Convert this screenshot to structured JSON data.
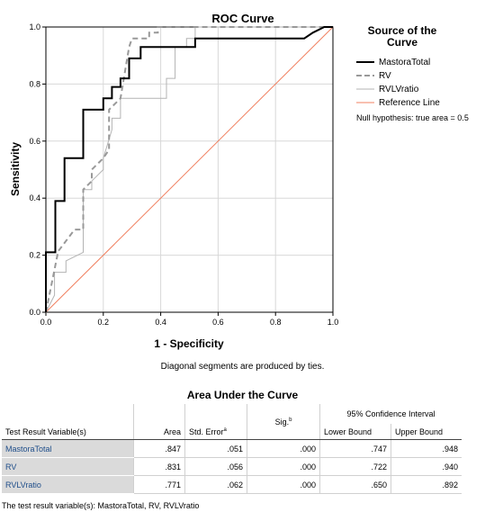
{
  "chart_data": {
    "type": "line",
    "title": "ROC Curve",
    "xlabel": "1 - Specificity",
    "ylabel": "Sensitivity",
    "xlim": [
      0,
      1
    ],
    "ylim": [
      0,
      1
    ],
    "xticks": [
      "0.0",
      "0.2",
      "0.4",
      "0.6",
      "0.8",
      "1.0"
    ],
    "yticks": [
      "0.0",
      "0.2",
      "0.4",
      "0.6",
      "0.8",
      "1.0"
    ],
    "grid": true,
    "legend_title": "Source of the Curve",
    "legend_note": "Null hypothesis: true area = 0.5",
    "legend_position": "right",
    "series": [
      {
        "name": "MastoraTotal",
        "color": "#000000",
        "style": "solid",
        "x": [
          0,
          0,
          0.033,
          0.033,
          0.065,
          0.065,
          0.13,
          0.13,
          0.2,
          0.2,
          0.23,
          0.23,
          0.26,
          0.26,
          0.29,
          0.29,
          0.33,
          0.33,
          0.36,
          0.36,
          0.4,
          0.4,
          0.45,
          0.45,
          0.52,
          0.52,
          0.9,
          0.93,
          0.97,
          1.0
        ],
        "y": [
          0,
          0.21,
          0.21,
          0.39,
          0.39,
          0.54,
          0.54,
          0.71,
          0.71,
          0.75,
          0.75,
          0.79,
          0.79,
          0.82,
          0.82,
          0.89,
          0.89,
          0.93,
          0.93,
          0.93,
          0.93,
          0.93,
          0.93,
          0.93,
          0.93,
          0.96,
          0.96,
          0.98,
          1.0,
          1.0
        ]
      },
      {
        "name": "RV",
        "color": "#999999",
        "style": "dashed",
        "x": [
          0,
          0.02,
          0.04,
          0.04,
          0.1,
          0.13,
          0.13,
          0.16,
          0.16,
          0.2,
          0.22,
          0.22,
          0.26,
          0.29,
          0.3,
          0.36,
          0.36,
          0.39,
          0.39,
          1.0
        ],
        "y": [
          0,
          0.1,
          0.2,
          0.21,
          0.29,
          0.29,
          0.43,
          0.46,
          0.5,
          0.54,
          0.57,
          0.71,
          0.75,
          0.93,
          0.96,
          0.96,
          0.98,
          0.98,
          1.0,
          1.0
        ]
      },
      {
        "name": "RVLVratio",
        "color": "#b3b3b3",
        "style": "solid",
        "x": [
          0,
          0.03,
          0.03,
          0.07,
          0.07,
          0.13,
          0.13,
          0.16,
          0.16,
          0.2,
          0.2,
          0.23,
          0.23,
          0.26,
          0.26,
          0.33,
          0.33,
          0.42,
          0.42,
          0.45,
          0.45,
          0.49,
          0.49,
          0.52,
          0.52,
          1.0
        ],
        "y": [
          0,
          0.06,
          0.14,
          0.14,
          0.18,
          0.21,
          0.43,
          0.43,
          0.46,
          0.5,
          0.54,
          0.64,
          0.68,
          0.68,
          0.75,
          0.75,
          0.75,
          0.75,
          0.82,
          0.82,
          0.93,
          0.93,
          0.96,
          0.96,
          1.0,
          1.0
        ]
      },
      {
        "name": "Reference Line",
        "color": "#f08060",
        "style": "solid",
        "x": [
          0,
          1
        ],
        "y": [
          0,
          1
        ]
      }
    ],
    "footnote": "Diagonal segments are produced by ties."
  },
  "auc_table": {
    "title": "Area Under the Curve",
    "headers": {
      "variable": "Test Result Variable(s)",
      "area": "Area",
      "std_error": "Std. Error",
      "std_error_mark": "a",
      "sig": "Sig.",
      "sig_mark": "b",
      "ci": "95% Confidence Interval",
      "lower": "Lower Bound",
      "upper": "Upper Bound"
    },
    "rows": [
      {
        "name": "MastoraTotal",
        "area": ".847",
        "se": ".051",
        "sig": ".000",
        "lower": ".747",
        "upper": ".948"
      },
      {
        "name": "RV",
        "area": ".831",
        "se": ".056",
        "sig": ".000",
        "lower": ".722",
        "upper": ".940"
      },
      {
        "name": "RVLVratio",
        "area": ".771",
        "se": ".062",
        "sig": ".000",
        "lower": ".650",
        "upper": ".892"
      }
    ],
    "footnote": "The test result variable(s): MastoraTotal, RV, RVLVratio"
  }
}
